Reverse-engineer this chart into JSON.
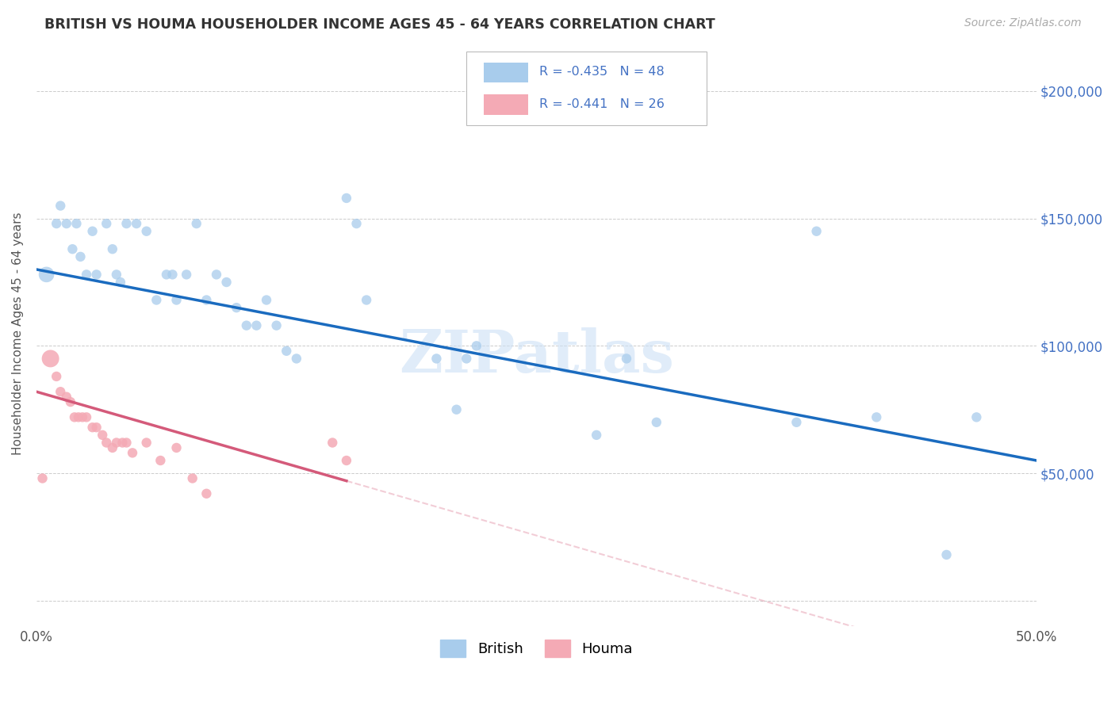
{
  "title": "BRITISH VS HOUMA HOUSEHOLDER INCOME AGES 45 - 64 YEARS CORRELATION CHART",
  "source": "Source: ZipAtlas.com",
  "ylabel": "Householder Income Ages 45 - 64 years",
  "xlim": [
    0.0,
    0.5
  ],
  "ylim": [
    -10000,
    220000
  ],
  "british_color": "#a8ccec",
  "houma_color": "#f4aab5",
  "british_line_color": "#1a6bbf",
  "houma_line_color": "#d45a7a",
  "houma_line_dash_color": "#f0a0b8",
  "british_R": "-0.435",
  "british_N": "48",
  "houma_R": "-0.441",
  "houma_N": "26",
  "watermark": "ZIPatlas",
  "legend_text_color": "#4472c4",
  "british_x": [
    0.005,
    0.01,
    0.012,
    0.015,
    0.018,
    0.02,
    0.022,
    0.025,
    0.028,
    0.03,
    0.035,
    0.038,
    0.04,
    0.042,
    0.045,
    0.05,
    0.055,
    0.06,
    0.065,
    0.068,
    0.07,
    0.075,
    0.08,
    0.085,
    0.09,
    0.095,
    0.1,
    0.105,
    0.11,
    0.115,
    0.12,
    0.125,
    0.13,
    0.155,
    0.16,
    0.165,
    0.2,
    0.21,
    0.215,
    0.22,
    0.28,
    0.295,
    0.31,
    0.38,
    0.39,
    0.42,
    0.455,
    0.47
  ],
  "british_y": [
    128000,
    148000,
    155000,
    148000,
    138000,
    148000,
    135000,
    128000,
    145000,
    128000,
    148000,
    138000,
    128000,
    125000,
    148000,
    148000,
    145000,
    118000,
    128000,
    128000,
    118000,
    128000,
    148000,
    118000,
    128000,
    125000,
    115000,
    108000,
    108000,
    118000,
    108000,
    98000,
    95000,
    158000,
    148000,
    118000,
    95000,
    75000,
    95000,
    100000,
    65000,
    95000,
    70000,
    70000,
    145000,
    72000,
    18000,
    72000
  ],
  "british_size": [
    200,
    80,
    80,
    80,
    80,
    80,
    80,
    80,
    80,
    80,
    80,
    80,
    80,
    80,
    80,
    80,
    80,
    80,
    80,
    80,
    80,
    80,
    80,
    80,
    80,
    80,
    80,
    80,
    80,
    80,
    80,
    80,
    80,
    80,
    80,
    80,
    80,
    80,
    80,
    80,
    80,
    80,
    80,
    80,
    80,
    80,
    80,
    80
  ],
  "houma_x": [
    0.003,
    0.007,
    0.01,
    0.012,
    0.015,
    0.017,
    0.019,
    0.021,
    0.023,
    0.025,
    0.028,
    0.03,
    0.033,
    0.035,
    0.038,
    0.04,
    0.043,
    0.045,
    0.048,
    0.055,
    0.062,
    0.07,
    0.078,
    0.085,
    0.148,
    0.155
  ],
  "houma_y": [
    48000,
    95000,
    88000,
    82000,
    80000,
    78000,
    72000,
    72000,
    72000,
    72000,
    68000,
    68000,
    65000,
    62000,
    60000,
    62000,
    62000,
    62000,
    58000,
    62000,
    55000,
    60000,
    48000,
    42000,
    62000,
    55000
  ],
  "houma_size": [
    80,
    250,
    80,
    80,
    80,
    80,
    80,
    80,
    80,
    80,
    80,
    80,
    80,
    80,
    80,
    80,
    80,
    80,
    80,
    80,
    80,
    80,
    80,
    80,
    80,
    80
  ]
}
